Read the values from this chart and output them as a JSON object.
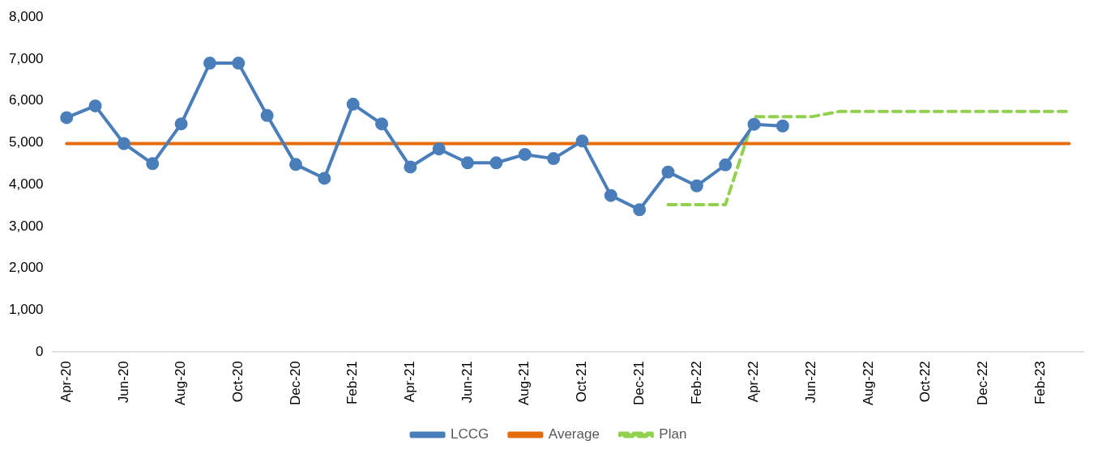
{
  "chart_data": {
    "type": "line",
    "categories": [
      "Apr-20",
      null,
      "Jun-20",
      null,
      "Aug-20",
      null,
      "Oct-20",
      null,
      "Dec-20",
      null,
      "Feb-21",
      null,
      "Apr-21",
      null,
      "Jun-21",
      null,
      "Aug-21",
      null,
      "Oct-21",
      null,
      "Dec-21",
      null,
      "Feb-22",
      null,
      "Apr-22",
      null,
      "Jun-22",
      null,
      "Aug-22",
      null,
      "Oct-22",
      null,
      "Dec-22",
      null,
      "Feb-23",
      null
    ],
    "series": [
      {
        "name": "LCCG",
        "color": "#4a7ebb",
        "marker": "circle",
        "line_style": "solid",
        "values": [
          5600,
          5880,
          4980,
          4500,
          5450,
          6900,
          6900,
          5650,
          4480,
          4150,
          5920,
          5450,
          4420,
          4850,
          4520,
          4520,
          4720,
          4620,
          5040,
          3740,
          3400,
          4300,
          3970,
          4470,
          5440,
          5400,
          null,
          null,
          null,
          null,
          null,
          null,
          null,
          null,
          null,
          null
        ]
      },
      {
        "name": "Average",
        "color": "#e46c0a",
        "marker": "none",
        "line_style": "solid",
        "values": [
          4980,
          4980,
          4980,
          4980,
          4980,
          4980,
          4980,
          4980,
          4980,
          4980,
          4980,
          4980,
          4980,
          4980,
          4980,
          4980,
          4980,
          4980,
          4980,
          4980,
          4980,
          4980,
          4980,
          4980,
          4980,
          4980,
          4980,
          4980,
          4980,
          4980,
          4980,
          4980,
          4980,
          4980,
          4980,
          4980
        ]
      },
      {
        "name": "Plan",
        "color": "#92d050",
        "marker": "none",
        "line_style": "dashed",
        "values": [
          null,
          null,
          null,
          null,
          null,
          null,
          null,
          null,
          null,
          null,
          null,
          null,
          null,
          null,
          null,
          null,
          null,
          null,
          null,
          null,
          null,
          3520,
          3520,
          3520,
          5620,
          5620,
          5620,
          5750,
          5750,
          5750,
          5750,
          5750,
          5750,
          5750,
          5750,
          5750
        ]
      }
    ],
    "ylim": [
      0,
      8000
    ],
    "yticks": [
      0,
      {
        "value": 1000,
        "label": "1,000"
      },
      {
        "value": 2000,
        "label": "2,000"
      },
      {
        "value": 3000,
        "label": "3,000"
      },
      {
        "value": 4000,
        "label": "4,000"
      },
      {
        "value": 5000,
        "label": "5,000"
      },
      {
        "value": 6000,
        "label": "6,000"
      },
      {
        "value": 7000,
        "label": "7,000"
      },
      {
        "value": 8000,
        "label": "8,000"
      }
    ],
    "grid": false,
    "legend": "bottom"
  }
}
